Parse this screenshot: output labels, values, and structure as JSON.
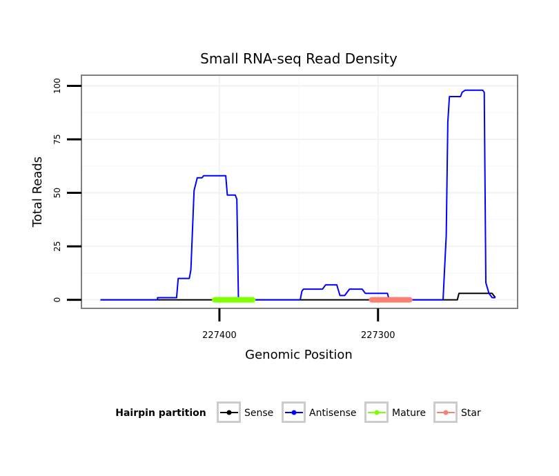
{
  "chart_data": {
    "type": "line",
    "title": "Small RNA-seq Read Density",
    "xlabel": "Genomic Position",
    "ylabel": "Total Reads",
    "x_reversed": true,
    "xlim": [
      227487,
      227212
    ],
    "ylim": [
      -4,
      105
    ],
    "x_ticks": [
      227400,
      227300
    ],
    "x_tick_labels": [
      "227400",
      "227300"
    ],
    "y_ticks": [
      0,
      25,
      50,
      75,
      100
    ],
    "y_tick_labels": [
      "0",
      "25",
      "50",
      "75",
      "100"
    ],
    "grid": true,
    "legend_title": "Hairpin partition",
    "legend_position": "bottom",
    "series": [
      {
        "name": "Sense",
        "color": "#000000",
        "points": [
          [
            227475,
            0
          ],
          [
            227250,
            0
          ],
          [
            227249,
            3
          ],
          [
            227228,
            3
          ],
          [
            227226,
            1
          ]
        ]
      },
      {
        "name": "Antisense",
        "color": "#0000ff",
        "points": [
          [
            227475,
            0
          ],
          [
            227439,
            0
          ],
          [
            227439,
            1
          ],
          [
            227427,
            1
          ],
          [
            227426,
            10
          ],
          [
            227419,
            10
          ],
          [
            227418,
            14
          ],
          [
            227416,
            51
          ],
          [
            227414,
            57
          ],
          [
            227411,
            57
          ],
          [
            227410,
            58
          ],
          [
            227396,
            58
          ],
          [
            227395,
            49
          ],
          [
            227390,
            49
          ],
          [
            227389,
            47
          ],
          [
            227388,
            0
          ],
          [
            227349,
            0
          ],
          [
            227348,
            4
          ],
          [
            227347,
            5
          ],
          [
            227335,
            5
          ],
          [
            227333,
            7
          ],
          [
            227326,
            7
          ],
          [
            227324,
            2
          ],
          [
            227321,
            2
          ],
          [
            227318,
            5
          ],
          [
            227310,
            5
          ],
          [
            227308,
            3
          ],
          [
            227294,
            3
          ],
          [
            227293,
            0
          ],
          [
            227259,
            0
          ],
          [
            227257,
            30
          ],
          [
            227256,
            83
          ],
          [
            227255,
            95
          ],
          [
            227248,
            95
          ],
          [
            227247,
            97
          ],
          [
            227245,
            98
          ],
          [
            227234,
            98
          ],
          [
            227233,
            97
          ],
          [
            227232,
            8
          ],
          [
            227230,
            3
          ],
          [
            227228,
            1
          ],
          [
            227226,
            1
          ]
        ]
      },
      {
        "name": "Mature",
        "color": "#7fff00",
        "segment": [
          227403,
          227379
        ]
      },
      {
        "name": "Star",
        "color": "#fa8072",
        "segment": [
          227304,
          227280
        ]
      }
    ]
  }
}
